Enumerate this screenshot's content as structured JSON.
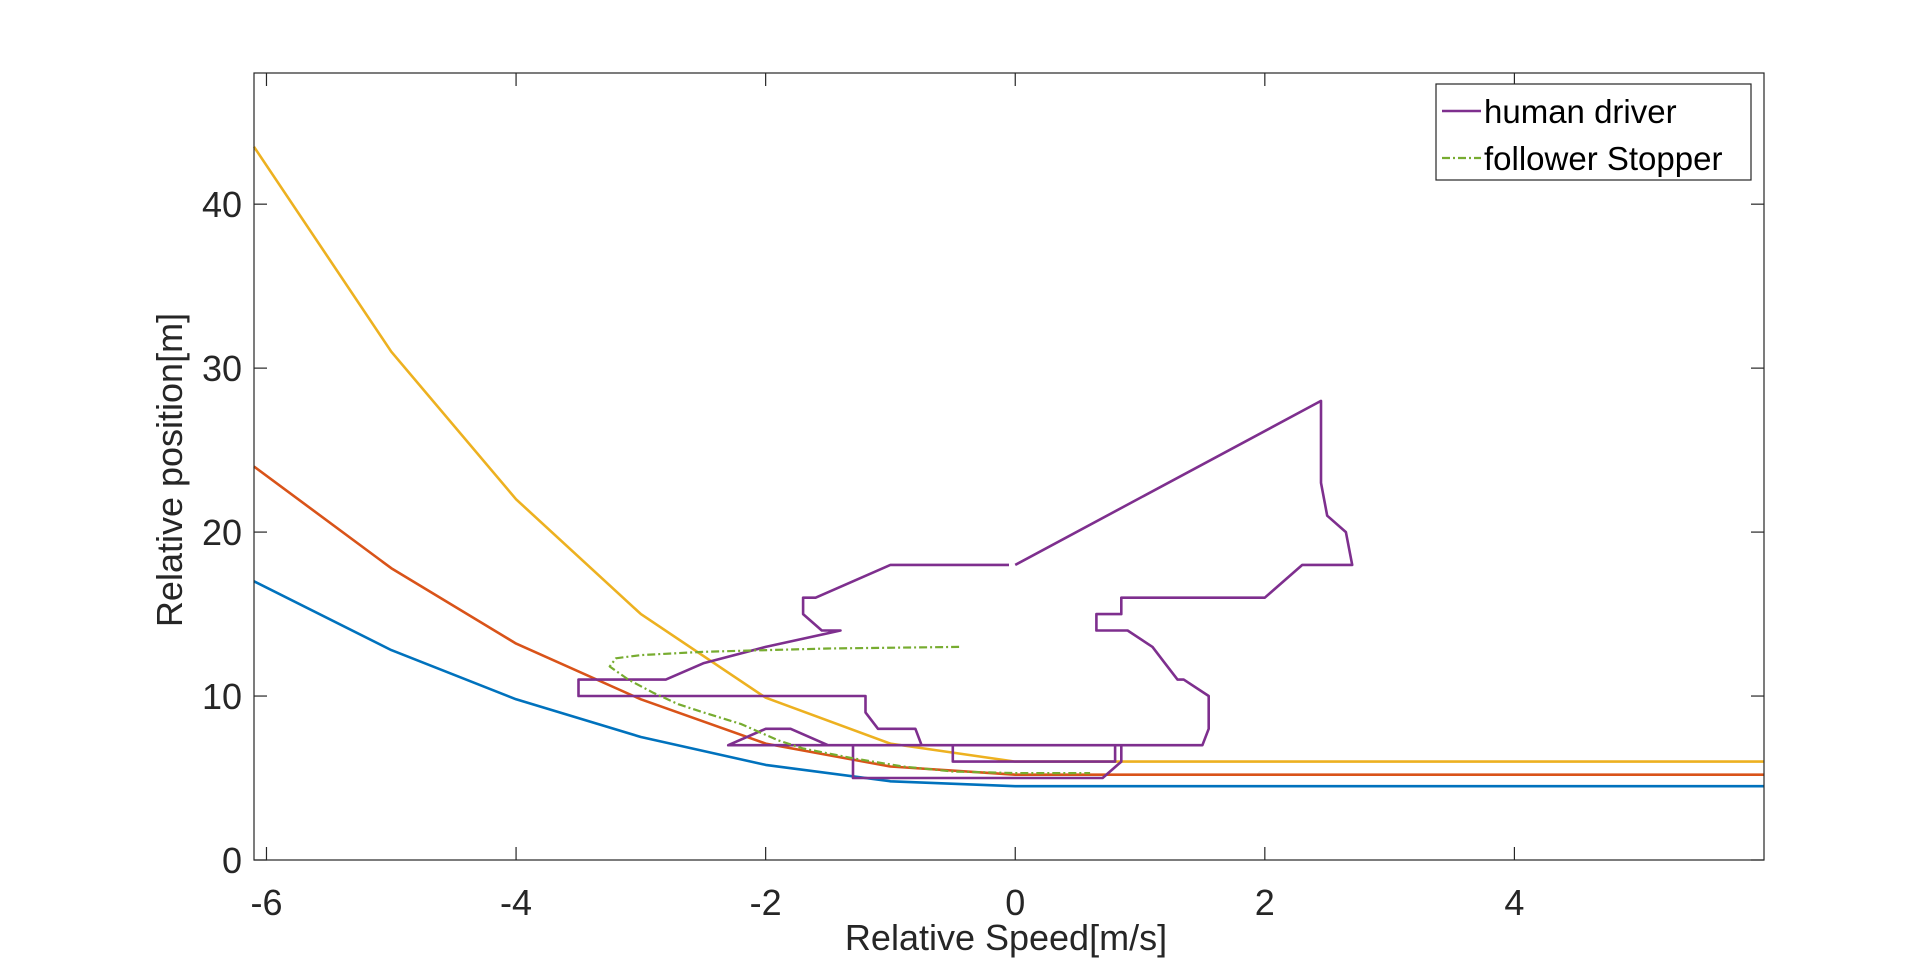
{
  "chart_data": {
    "type": "line",
    "title": "",
    "xlabel": "Relative Speed[m/s]",
    "ylabel": "Relative position[m]",
    "xlim": [
      -6.1,
      6
    ],
    "ylim": [
      0,
      48
    ],
    "xticks": [
      -6,
      -4,
      -2,
      0,
      2,
      4
    ],
    "yticks": [
      0,
      10,
      20,
      30,
      40
    ],
    "grid": false,
    "legend_position": "top-right",
    "series": [
      {
        "name": "",
        "color": "#0072BD",
        "style": "solid",
        "points": [
          [
            -6.1,
            17
          ],
          [
            -5,
            12.8
          ],
          [
            -4,
            9.8
          ],
          [
            -3,
            7.5
          ],
          [
            -2,
            5.8
          ],
          [
            -1,
            4.8
          ],
          [
            0,
            4.5
          ],
          [
            6,
            4.5
          ]
        ]
      },
      {
        "name": "",
        "color": "#D95319",
        "style": "solid",
        "points": [
          [
            -6.1,
            24
          ],
          [
            -5,
            17.8
          ],
          [
            -4,
            13.2
          ],
          [
            -3,
            9.8
          ],
          [
            -2,
            7.1
          ],
          [
            -1,
            5.7
          ],
          [
            0,
            5.2
          ],
          [
            6,
            5.2
          ]
        ]
      },
      {
        "name": "",
        "color": "#EDB120",
        "style": "solid",
        "points": [
          [
            -6.1,
            43.5
          ],
          [
            -5,
            31
          ],
          [
            -4,
            22
          ],
          [
            -3,
            15
          ],
          [
            -2,
            9.9
          ],
          [
            -1,
            7.1
          ],
          [
            0,
            6
          ],
          [
            6,
            6
          ]
        ]
      },
      {
        "name": "human driver",
        "color": "#7E2F8E",
        "style": "solid",
        "points": [
          [
            -0.05,
            18
          ],
          [
            -1,
            18
          ],
          [
            -1.3,
            17
          ],
          [
            -1.6,
            16
          ],
          [
            -1.7,
            16
          ],
          [
            -1.7,
            15
          ],
          [
            -1.55,
            14
          ],
          [
            -1.4,
            14
          ],
          [
            -2,
            13
          ],
          [
            -2.5,
            12
          ],
          [
            -2.8,
            11
          ],
          [
            -3,
            11
          ],
          [
            -3.5,
            11
          ],
          [
            -3.5,
            10
          ],
          [
            -2,
            10
          ],
          [
            -1.5,
            10
          ],
          [
            -1.2,
            10
          ],
          [
            -1.2,
            9
          ],
          [
            -1.1,
            8
          ],
          [
            -0.8,
            8
          ],
          [
            -0.75,
            7
          ],
          [
            -0.5,
            7
          ],
          [
            0,
            7
          ],
          [
            0.3,
            7
          ],
          [
            0.85,
            7
          ],
          [
            0.85,
            6
          ],
          [
            0.7,
            5
          ],
          [
            0.1,
            5
          ],
          [
            0,
            5
          ],
          [
            -0.2,
            5
          ],
          [
            -0.5,
            5
          ],
          [
            -1.3,
            5
          ],
          [
            -1.3,
            6
          ],
          [
            -1.3,
            7
          ],
          [
            -2.3,
            7
          ],
          [
            -2,
            8
          ],
          [
            -1.8,
            8
          ],
          [
            -1.5,
            7
          ],
          [
            -0.5,
            7
          ],
          [
            -0.5,
            6
          ],
          [
            0,
            6
          ],
          [
            0.8,
            6
          ],
          [
            0.8,
            7
          ],
          [
            1.5,
            7
          ],
          [
            1.55,
            8
          ],
          [
            1.55,
            9
          ],
          [
            1.55,
            10
          ],
          [
            1.35,
            11
          ],
          [
            1.3,
            11
          ],
          [
            1.2,
            12
          ],
          [
            1.1,
            13
          ],
          [
            0.9,
            14
          ],
          [
            0.9,
            14
          ],
          [
            0.65,
            14
          ],
          [
            0.65,
            15
          ],
          [
            0.85,
            15
          ],
          [
            0.85,
            16
          ],
          [
            2,
            16
          ],
          [
            2.3,
            18
          ],
          [
            2.7,
            18
          ],
          [
            2.65,
            20
          ],
          [
            2.5,
            21
          ],
          [
            2.45,
            23
          ],
          [
            2.45,
            28
          ],
          [
            0,
            18
          ]
        ]
      },
      {
        "name": "follower Stopper",
        "color": "#77AC30",
        "style": "dashdot",
        "points": [
          [
            -0.45,
            13
          ],
          [
            -1.5,
            12.9
          ],
          [
            -2.5,
            12.7
          ],
          [
            -3,
            12.5
          ],
          [
            -3.2,
            12.3
          ],
          [
            -3.25,
            11.8
          ],
          [
            -3.1,
            11
          ],
          [
            -2.9,
            10.2
          ],
          [
            -2.7,
            9.5
          ],
          [
            -2.5,
            9
          ],
          [
            -2.2,
            8.3
          ],
          [
            -1.9,
            7.3
          ],
          [
            -1.7,
            6.8
          ],
          [
            -1.3,
            6.2
          ],
          [
            -0.9,
            5.7
          ],
          [
            -0.5,
            5.4
          ],
          [
            0,
            5.3
          ],
          [
            0.6,
            5.3
          ]
        ]
      }
    ]
  }
}
